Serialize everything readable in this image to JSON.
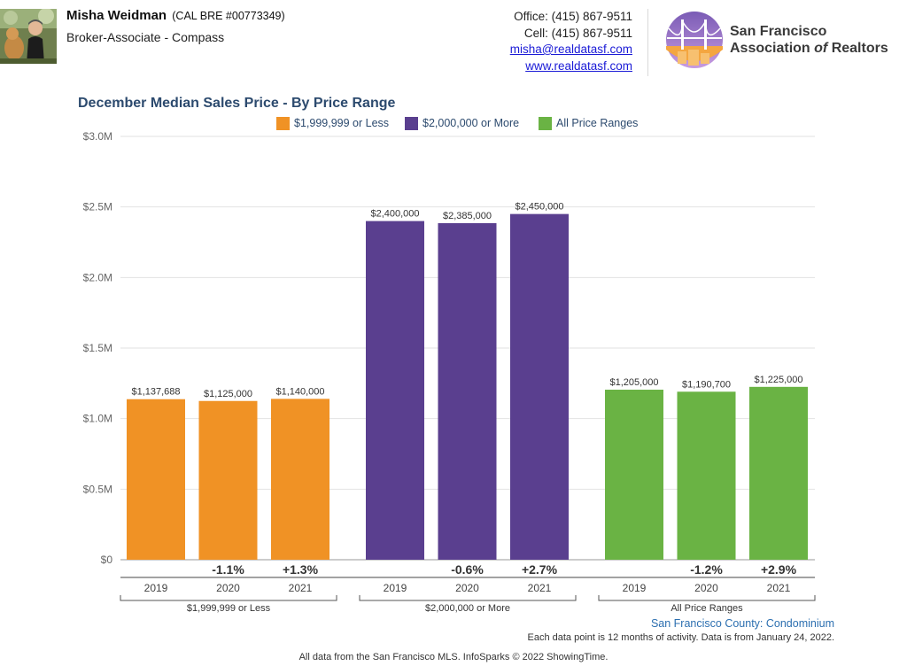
{
  "header": {
    "agent_name": "Misha Weidman",
    "agent_license": "(CAL BRE #00773349)",
    "agent_title": "Broker-Associate - Compass",
    "office_phone": "Office: (415) 867-9511",
    "cell_phone": "Cell: (415) 867-9511",
    "email": "misha@realdatasf.com",
    "website": "www.realdatasf.com",
    "association_line1": "San Francisco",
    "association_line2_pre": "Association ",
    "association_line2_of": "of",
    "association_line2_post": " Realtors"
  },
  "chart_data": {
    "type": "bar",
    "title": "December Median Sales Price - By Price Range",
    "ylim": [
      0,
      3000000
    ],
    "yticks": [
      {
        "value": 0,
        "label": "$0"
      },
      {
        "value": 500000,
        "label": "$0.5M"
      },
      {
        "value": 1000000,
        "label": "$1.0M"
      },
      {
        "value": 1500000,
        "label": "$1.5M"
      },
      {
        "value": 2000000,
        "label": "$2.0M"
      },
      {
        "value": 2500000,
        "label": "$2.5M"
      },
      {
        "value": 3000000,
        "label": "$3.0M"
      }
    ],
    "grid": true,
    "legend_position": "top",
    "categories": [
      "2019",
      "2020",
      "2021"
    ],
    "series": [
      {
        "name": "$1,999,999 or Less",
        "group_label": "$1,999,999 or Less",
        "color": "#f09225",
        "values": [
          1137688,
          1125000,
          1140000
        ],
        "value_labels": [
          "$1,137,688",
          "$1,125,000",
          "$1,140,000"
        ],
        "change_labels": [
          "",
          "-1.1%",
          "+1.3%"
        ]
      },
      {
        "name": "$2,000,000 or More",
        "group_label": "$2,000,000 or More",
        "color": "#5a3f8f",
        "values": [
          2400000,
          2385000,
          2450000
        ],
        "value_labels": [
          "$2,400,000",
          "$2,385,000",
          "$2,450,000"
        ],
        "change_labels": [
          "",
          "-0.6%",
          "+2.7%"
        ]
      },
      {
        "name": "All Price Ranges",
        "group_label": "All Price Ranges",
        "color": "#6ab344",
        "values": [
          1205000,
          1190700,
          1225000
        ],
        "value_labels": [
          "$1,205,000",
          "$1,190,700",
          "$1,225,000"
        ],
        "change_labels": [
          "",
          "-1.2%",
          "+2.9%"
        ]
      }
    ]
  },
  "footer": {
    "region": "San Francisco County: Condominium",
    "note": "Each data point is 12 months of activity. Data is from January 24, 2022.",
    "source": "All data from the San Francisco MLS. InfoSparks © 2022 ShowingTime."
  }
}
